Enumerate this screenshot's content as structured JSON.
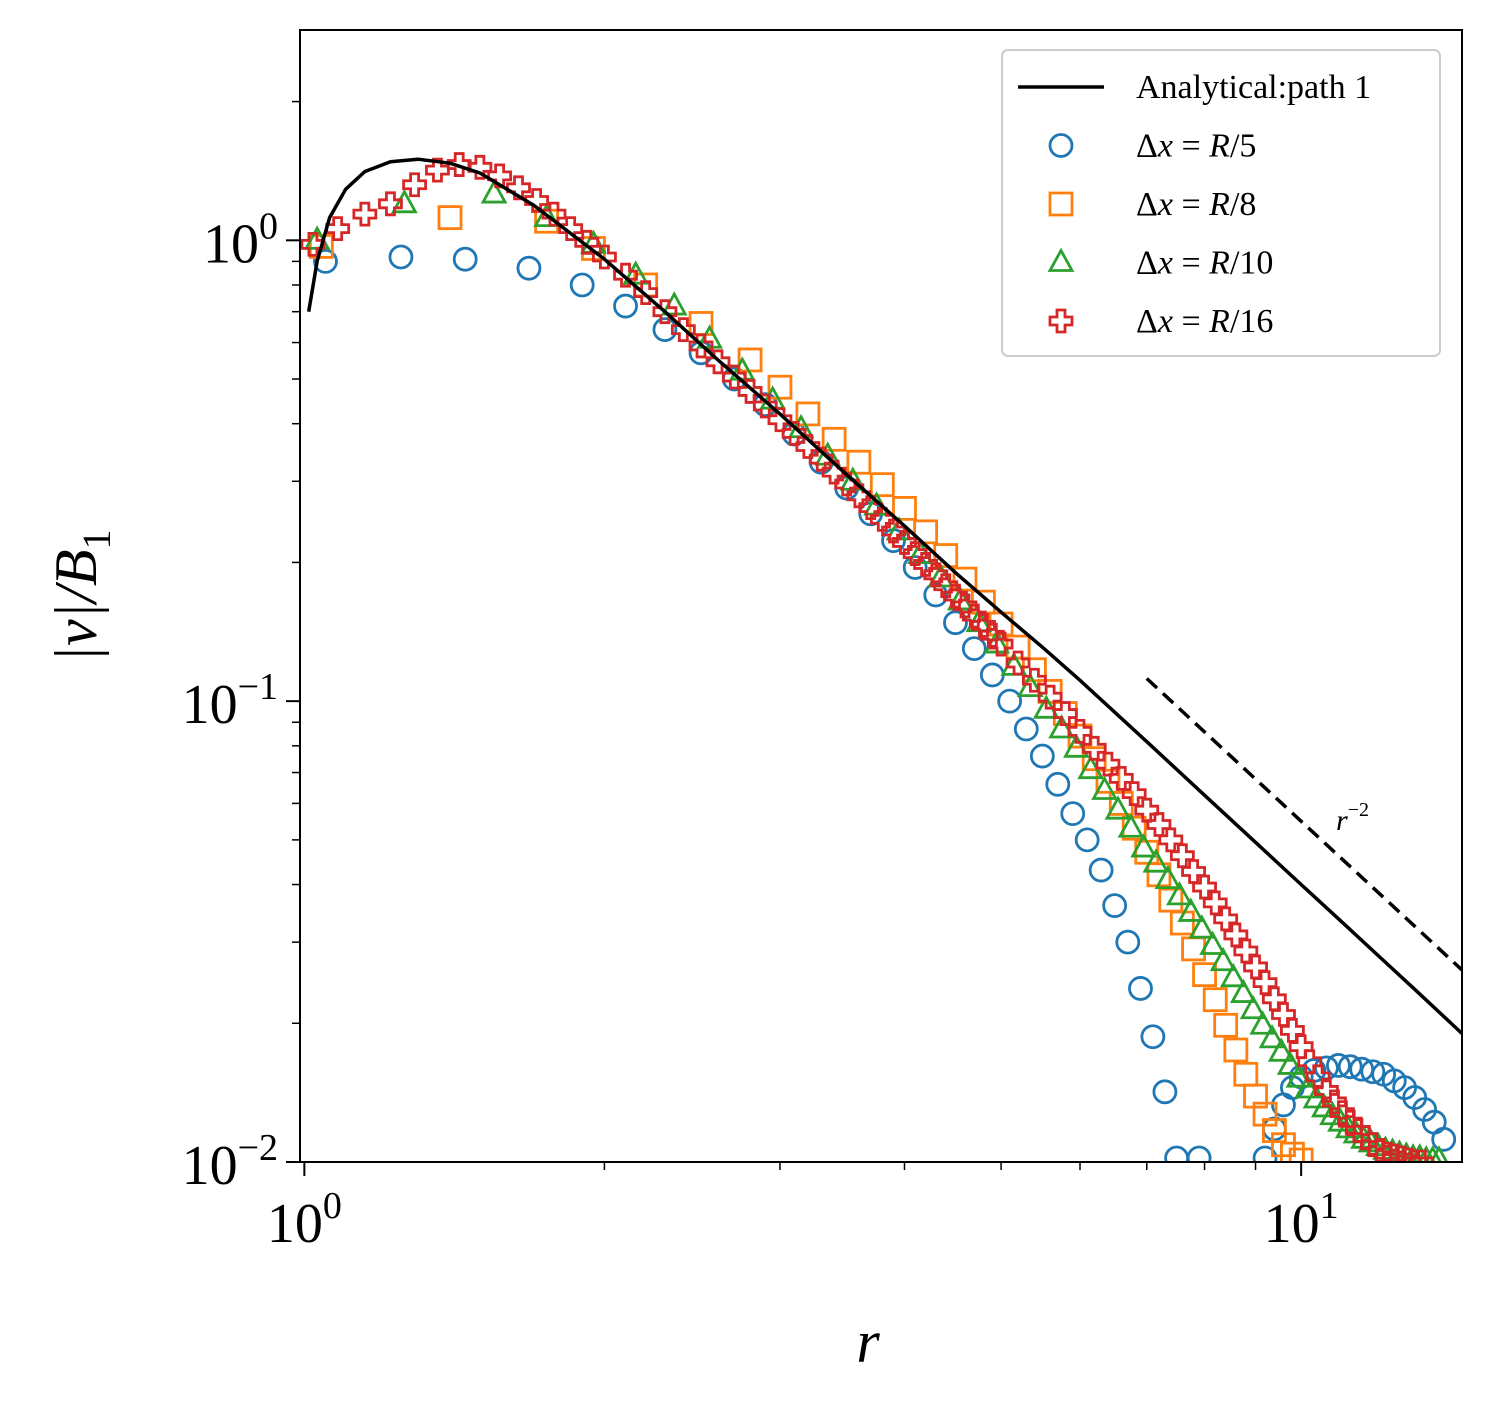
{
  "chart_data": {
    "type": "scatter",
    "title": "",
    "xlabel": "r",
    "ylabel": "|v|/B",
    "ylabel_subscript": "1",
    "xscale": "log",
    "yscale": "log",
    "xlim": [
      0.99,
      14.5
    ],
    "ylim": [
      0.01,
      2.86
    ],
    "x_ticks": [
      {
        "value": 1,
        "base": "10",
        "exp": "0"
      },
      {
        "value": 10,
        "base": "10",
        "exp": "1"
      }
    ],
    "y_ticks": [
      {
        "value": 1,
        "base": "10",
        "exp": "0"
      },
      {
        "value": 0.1,
        "base": "10",
        "exp": "−1"
      },
      {
        "value": 0.01,
        "base": "10",
        "exp": "−2"
      }
    ],
    "legend_position": "top-right",
    "series": [
      {
        "name": "Analytical:path 1",
        "legend_label": "Analytical:path 1",
        "kind": "line",
        "color": "#000000",
        "x": [
          1.01,
          1.03,
          1.06,
          1.1,
          1.15,
          1.22,
          1.3,
          1.4,
          1.5,
          1.7,
          2.0,
          2.3,
          2.6,
          3.0,
          3.5,
          4.0,
          4.5,
          5.0,
          5.5,
          6.0,
          7.0,
          8.0,
          9.0,
          10.0,
          11.0,
          12.0,
          13.0,
          14.5
        ],
        "y": [
          0.7,
          0.9,
          1.12,
          1.29,
          1.41,
          1.48,
          1.5,
          1.47,
          1.4,
          1.19,
          0.91,
          0.7,
          0.55,
          0.42,
          0.31,
          0.24,
          0.19,
          0.156,
          0.131,
          0.111,
          0.0817,
          0.0625,
          0.0494,
          0.04,
          0.0331,
          0.0278,
          0.0237,
          0.019
        ]
      },
      {
        "name": "Δx = R/5",
        "legend_prefix": "Δ",
        "legend_var": "x",
        "legend_eq": " = ",
        "legend_R": "R",
        "legend_den": "/5",
        "kind": "scatter",
        "marker": "circle",
        "color": "#1f77b4",
        "x": [
          1.05,
          1.25,
          1.45,
          1.68,
          1.9,
          2.1,
          2.3,
          2.5,
          2.7,
          2.9,
          3.1,
          3.3,
          3.5,
          3.7,
          3.9,
          4.1,
          4.3,
          4.5,
          4.7,
          4.9,
          5.1,
          5.3,
          5.5,
          5.7,
          5.9,
          6.1,
          6.3,
          6.5,
          6.7,
          6.9,
          7.1,
          7.3,
          7.5,
          7.9,
          9.2,
          9.4,
          9.6,
          9.8,
          10.0,
          10.3,
          10.6,
          10.9,
          11.2,
          11.5,
          11.8,
          12.1,
          12.4,
          12.7,
          13.0,
          13.3,
          13.6,
          13.9
        ],
        "y": [
          0.9,
          0.92,
          0.91,
          0.87,
          0.8,
          0.72,
          0.64,
          0.57,
          0.5,
          0.44,
          0.38,
          0.33,
          0.29,
          0.255,
          0.223,
          0.195,
          0.17,
          0.148,
          0.13,
          0.114,
          0.1,
          0.087,
          0.076,
          0.066,
          0.057,
          0.05,
          0.043,
          0.036,
          0.03,
          0.0238,
          0.0187,
          0.0142,
          0.0102,
          0.0102,
          0.0102,
          0.0118,
          0.0133,
          0.0145,
          0.0153,
          0.0158,
          0.016,
          0.0162,
          0.0161,
          0.0159,
          0.0157,
          0.0155,
          0.015,
          0.0145,
          0.0138,
          0.013,
          0.0122,
          0.0112
        ]
      },
      {
        "name": "Δx = R/8",
        "legend_prefix": "Δ",
        "legend_var": "x",
        "legend_eq": " = ",
        "legend_R": "R",
        "legend_den": "/8",
        "kind": "scatter",
        "marker": "square",
        "color": "#ff7f0e",
        "x": [
          1.04,
          1.4,
          1.75,
          1.95,
          2.2,
          2.5,
          2.8,
          3.0,
          3.2,
          3.4,
          3.6,
          3.8,
          4.0,
          4.2,
          4.4,
          4.6,
          4.8,
          5.0,
          5.2,
          5.4,
          5.6,
          5.8,
          6.0,
          6.2,
          6.4,
          6.6,
          6.8,
          7.0,
          7.2,
          7.4,
          7.6,
          7.8,
          8.0,
          8.2,
          8.4,
          8.6,
          8.8,
          9.0,
          9.2,
          9.4,
          9.6,
          9.8,
          10.0
        ],
        "y": [
          0.97,
          1.12,
          1.1,
          0.96,
          0.8,
          0.66,
          0.55,
          0.48,
          0.42,
          0.37,
          0.33,
          0.295,
          0.262,
          0.233,
          0.207,
          0.184,
          0.164,
          0.147,
          0.131,
          0.117,
          0.105,
          0.094,
          0.084,
          0.075,
          0.067,
          0.06,
          0.053,
          0.047,
          0.042,
          0.037,
          0.033,
          0.029,
          0.0255,
          0.0225,
          0.0198,
          0.0175,
          0.0155,
          0.0139,
          0.0127,
          0.0117,
          0.0109,
          0.0104,
          0.0101
        ]
      },
      {
        "name": "Δx = R/10",
        "legend_prefix": "Δ",
        "legend_var": "x",
        "legend_eq": " = ",
        "legend_R": "R",
        "legend_den": "/10",
        "kind": "scatter",
        "marker": "triangle",
        "color": "#2ca02c",
        "x": [
          1.03,
          1.26,
          1.55,
          1.75,
          1.95,
          2.15,
          2.35,
          2.55,
          2.75,
          2.95,
          3.15,
          3.35,
          3.55,
          3.75,
          3.95,
          4.15,
          4.35,
          4.55,
          4.75,
          4.95,
          5.15,
          5.35,
          5.55,
          5.75,
          5.95,
          6.15,
          6.35,
          6.55,
          6.75,
          6.95,
          7.15,
          7.35,
          7.55,
          7.75,
          7.95,
          8.15,
          8.35,
          8.55,
          8.75,
          8.95,
          9.15,
          9.35,
          9.55,
          9.75,
          9.95,
          10.15,
          10.35,
          10.55,
          10.75,
          10.95,
          11.15,
          11.35,
          11.55,
          11.75,
          11.95,
          12.15,
          12.35,
          12.55,
          12.75,
          12.95,
          13.15,
          13.35,
          13.55,
          13.75
        ],
        "y": [
          1.0,
          1.2,
          1.26,
          1.12,
          0.98,
          0.84,
          0.72,
          0.61,
          0.52,
          0.45,
          0.39,
          0.34,
          0.3,
          0.265,
          0.234,
          0.208,
          0.185,
          0.165,
          0.148,
          0.133,
          0.119,
          0.107,
          0.096,
          0.087,
          0.079,
          0.071,
          0.064,
          0.058,
          0.053,
          0.048,
          0.0445,
          0.041,
          0.0378,
          0.0348,
          0.032,
          0.0295,
          0.0272,
          0.0251,
          0.0232,
          0.0214,
          0.0198,
          0.0185,
          0.0173,
          0.0162,
          0.0152,
          0.0144,
          0.0137,
          0.0131,
          0.0126,
          0.0122,
          0.0118,
          0.0115,
          0.0112,
          0.011,
          0.0108,
          0.0106,
          0.0105,
          0.0104,
          0.0103,
          0.0102,
          0.0102,
          0.0101,
          0.0101,
          0.0101
        ]
      },
      {
        "name": "Δx = R/16",
        "legend_prefix": "Δ",
        "legend_var": "x",
        "legend_eq": " = ",
        "legend_R": "R",
        "legend_den": "/16",
        "kind": "scatter",
        "marker": "plus",
        "color": "#d62728",
        "x": [
          1.02,
          1.08,
          1.15,
          1.22,
          1.29,
          1.36,
          1.43,
          1.5,
          1.57,
          1.64,
          1.71,
          1.78,
          1.85,
          1.92,
          2.0,
          2.1,
          2.2,
          2.3,
          2.4,
          2.5,
          2.6,
          2.7,
          2.8,
          2.9,
          3.0,
          3.1,
          3.2,
          3.3,
          3.4,
          3.5,
          3.6,
          3.7,
          3.8,
          3.9,
          4.0,
          4.1,
          4.2,
          4.3,
          4.4,
          4.5,
          4.6,
          4.7,
          4.8,
          4.9,
          5.0,
          5.2,
          5.4,
          5.6,
          5.8,
          6.0,
          6.2,
          6.4,
          6.6,
          6.8,
          7.0,
          7.2,
          7.4,
          7.6,
          7.8,
          8.0,
          8.2,
          8.4,
          8.6,
          8.8,
          9.0,
          9.2,
          9.4,
          9.6,
          9.8,
          10.0,
          10.2,
          10.4,
          10.6,
          10.8,
          11.0,
          11.2,
          11.4,
          11.6,
          11.8,
          12.0,
          12.2,
          12.4,
          12.6,
          12.8,
          13.0,
          13.2
        ],
        "y": [
          0.98,
          1.06,
          1.14,
          1.2,
          1.32,
          1.42,
          1.46,
          1.44,
          1.38,
          1.3,
          1.22,
          1.14,
          1.06,
          0.99,
          0.92,
          0.84,
          0.77,
          0.7,
          0.64,
          0.59,
          0.545,
          0.505,
          0.47,
          0.437,
          0.408,
          0.381,
          0.357,
          0.335,
          0.314,
          0.296,
          0.279,
          0.263,
          0.248,
          0.234,
          0.221,
          0.209,
          0.198,
          0.188,
          0.178,
          0.169,
          0.161,
          0.153,
          0.146,
          0.139,
          0.133,
          0.121,
          0.111,
          0.102,
          0.094,
          0.086,
          0.079,
          0.073,
          0.068,
          0.063,
          0.058,
          0.054,
          0.05,
          0.0462,
          0.0427,
          0.0395,
          0.0365,
          0.0337,
          0.0311,
          0.0287,
          0.0265,
          0.0245,
          0.0226,
          0.0209,
          0.0193,
          0.0178,
          0.0165,
          0.0153,
          0.0143,
          0.0135,
          0.0128,
          0.0122,
          0.0117,
          0.0113,
          0.0109,
          0.0106,
          0.0104,
          0.0103,
          0.0102,
          0.0101,
          0.01,
          0.01
        ]
      }
    ],
    "reference_line": {
      "label_base": "r",
      "label_exp": "−2",
      "style": "dashed",
      "color": "#000000",
      "x": [
        7.0,
        14.5
      ],
      "y": [
        0.112,
        0.0261
      ]
    }
  }
}
